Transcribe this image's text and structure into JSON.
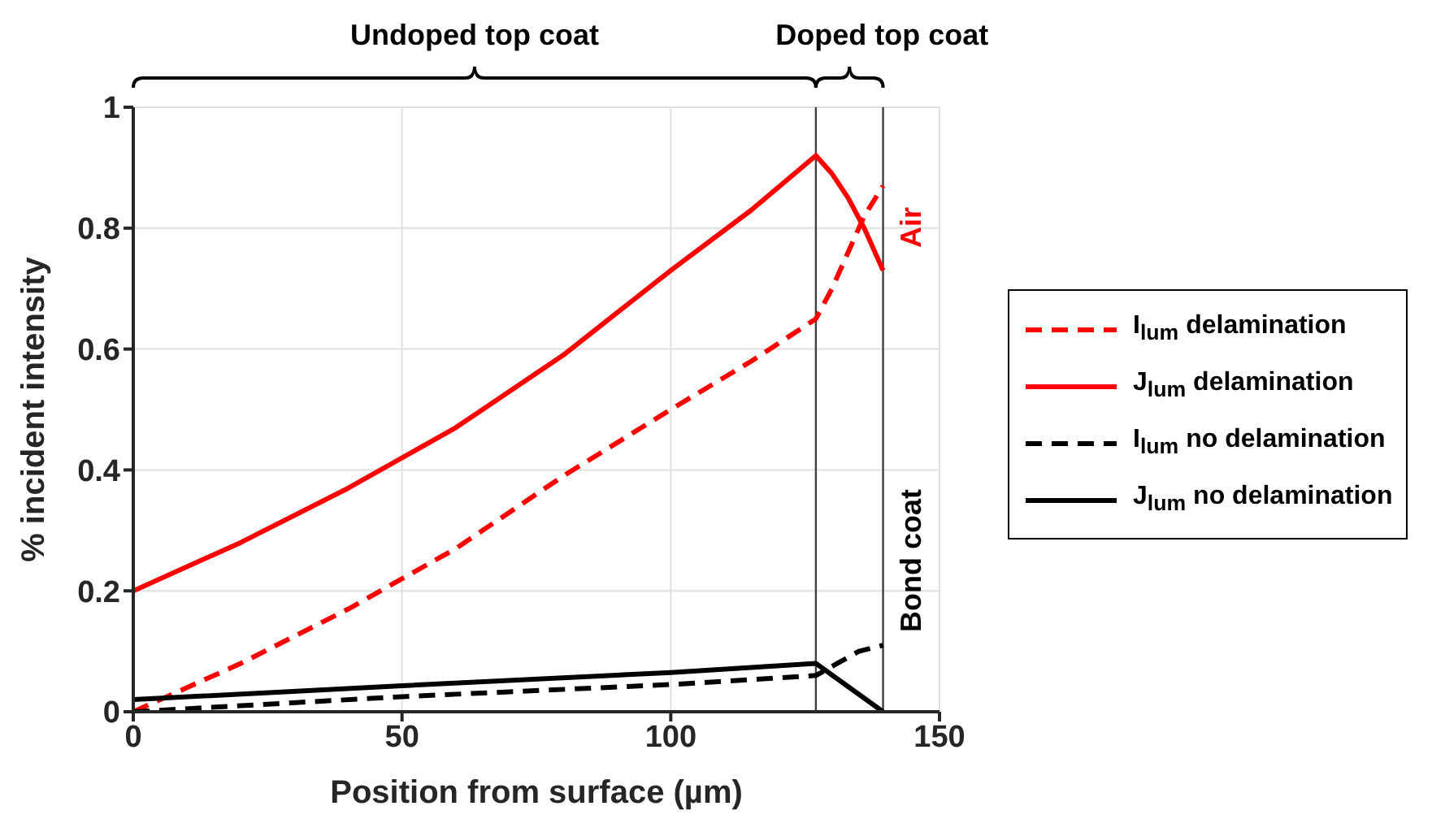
{
  "chart_data": {
    "type": "line",
    "xlabel": "Position from surface (µm)",
    "ylabel": "% incident intensity",
    "xlim": [
      0,
      150
    ],
    "xticks": [
      0,
      50,
      100,
      150
    ],
    "ylim": [
      0,
      1
    ],
    "yticks": [
      0,
      0.2,
      0.4,
      0.6,
      0.8,
      1
    ],
    "grid": true,
    "legend": "right",
    "series": [
      {
        "name": "I$_{lum}$ delamination",
        "color": "#ff0000",
        "line_style": "dashed",
        "x": [
          0,
          20,
          40,
          60,
          80,
          100,
          115,
          127,
          130,
          133,
          136,
          139.5
        ],
        "values": [
          0,
          0.08,
          0.17,
          0.27,
          0.39,
          0.5,
          0.58,
          0.65,
          0.7,
          0.76,
          0.82,
          0.87
        ]
      },
      {
        "name": "J$_{lum}$ delamination",
        "color": "#ff0000",
        "line_style": "solid",
        "x": [
          0,
          20,
          40,
          60,
          80,
          100,
          115,
          127,
          130,
          133,
          136,
          139.5
        ],
        "values": [
          0.2,
          0.28,
          0.37,
          0.47,
          0.59,
          0.73,
          0.83,
          0.92,
          0.89,
          0.85,
          0.8,
          0.73
        ]
      },
      {
        "name": "I$_{lum}$ no delamination",
        "color": "#000000",
        "line_style": "dashed",
        "x": [
          0,
          50,
          100,
          127,
          131,
          135,
          139.5
        ],
        "values": [
          0,
          0.025,
          0.045,
          0.06,
          0.08,
          0.1,
          0.11
        ]
      },
      {
        "name": "J$_{lum}$ no delamination",
        "color": "#000000",
        "line_style": "solid",
        "x": [
          0,
          50,
          100,
          127,
          139.5
        ],
        "values": [
          0.02,
          0.043,
          0.065,
          0.08,
          0
        ]
      }
    ],
    "ref_lines": [
      {
        "axis": "x",
        "value": 127,
        "color": "#404040"
      },
      {
        "axis": "x",
        "value": 139.5,
        "color": "#404040"
      }
    ],
    "annotations": [
      "Undoped top coat",
      "Doped top coat",
      "Air",
      "Bond coat"
    ]
  }
}
